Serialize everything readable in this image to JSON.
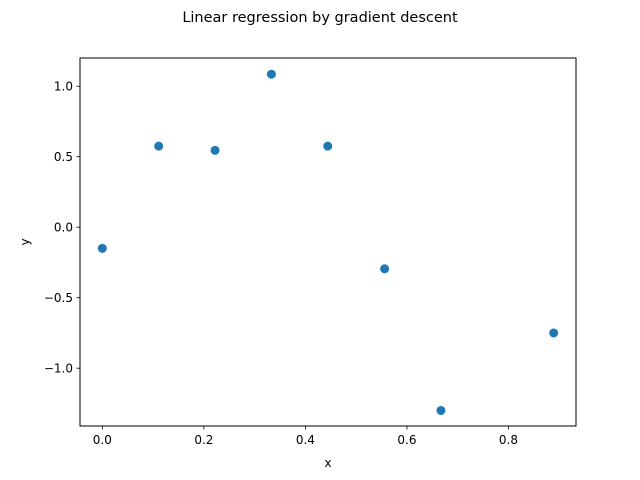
{
  "chart_data": {
    "type": "scatter",
    "title": "Linear regression by gradient descent",
    "xlabel": "x",
    "ylabel": "y",
    "xlim": [
      -0.044,
      0.933
    ],
    "ylim": [
      -1.41,
      1.2
    ],
    "grid": false,
    "x_ticks": [
      {
        "value": 0.0,
        "label": "0.0"
      },
      {
        "value": 0.2,
        "label": "0.2"
      },
      {
        "value": 0.4,
        "label": "0.4"
      },
      {
        "value": 0.6,
        "label": "0.6"
      },
      {
        "value": 0.8,
        "label": "0.8"
      }
    ],
    "y_ticks": [
      {
        "value": 1.0,
        "label": "1.0"
      },
      {
        "value": 0.5,
        "label": "0.5"
      },
      {
        "value": 0.0,
        "label": "0.0"
      },
      {
        "value": -0.5,
        "label": "−0.5"
      },
      {
        "value": -1.0,
        "label": "−1.0"
      }
    ],
    "series": [
      {
        "color": "#1f77b4",
        "points": [
          {
            "x": 0.0,
            "y": -0.15
          },
          {
            "x": 0.111,
            "y": 0.575
          },
          {
            "x": 0.222,
            "y": 0.545
          },
          {
            "x": 0.333,
            "y": 1.085
          },
          {
            "x": 0.444,
            "y": 0.575
          },
          {
            "x": 0.556,
            "y": -0.295
          },
          {
            "x": 0.667,
            "y": -1.3
          },
          {
            "x": 0.889,
            "y": -0.75
          }
        ]
      }
    ]
  }
}
